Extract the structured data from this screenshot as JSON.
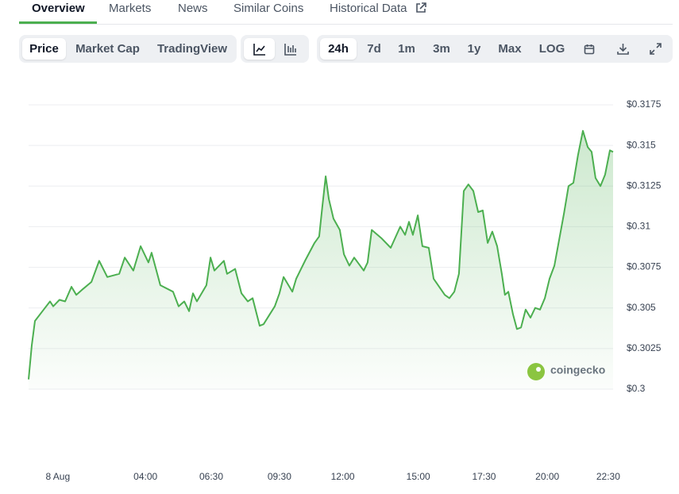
{
  "tabs": [
    "Overview",
    "Markets",
    "News",
    "Similar Coins",
    "Historical Data"
  ],
  "toolbar": {
    "views": [
      "Price",
      "Market Cap",
      "TradingView"
    ],
    "ranges": [
      "24h",
      "7d",
      "1m",
      "3m",
      "1y",
      "Max",
      "LOG"
    ]
  },
  "brand": "coingecko",
  "chart_data": {
    "type": "line",
    "color": "#4caf50",
    "grid": true,
    "x": [
      0,
      0.13,
      0.26,
      0.62,
      0.88,
      1.01,
      1.27,
      1.5,
      1.76,
      1.96,
      2.18,
      2.58,
      2.9,
      3.23,
      3.72,
      3.95,
      4.3,
      4.6,
      4.92,
      5.05,
      5.41,
      5.93,
      6.16,
      6.39,
      6.59,
      6.75,
      6.91,
      7.3,
      7.47,
      7.63,
      8.02,
      8.15,
      8.48,
      8.74,
      9.0,
      9.2,
      9.49,
      9.65,
      10.11,
      10.3,
      10.47,
      10.83,
      10.99,
      11.35,
      11.74,
      11.93,
      12.06,
      12.2,
      12.33,
      12.52,
      12.78,
      12.95,
      13.17,
      13.37,
      13.76,
      13.92,
      14.09,
      14.48,
      14.87,
      15.26,
      15.46,
      15.62,
      15.78,
      15.98,
      16.17,
      16.43,
      16.63,
      17.09,
      17.28,
      17.48,
      17.67,
      17.87,
      18.06,
      18.26,
      18.46,
      18.65,
      18.85,
      19.04,
      19.24,
      19.43,
      19.56,
      19.7,
      19.89,
      20.05,
      20.22,
      20.41,
      20.61,
      20.8,
      21.0,
      21.2,
      21.39,
      21.59,
      21.98,
      22.17,
      22.37,
      22.56,
      22.76,
      22.96,
      23.12,
      23.28,
      23.48,
      23.67,
      23.87,
      24.0
    ],
    "values": [
      0.3006,
      0.3027,
      0.3042,
      0.3049,
      0.3054,
      0.3051,
      0.3055,
      0.3054,
      0.3063,
      0.3058,
      0.3061,
      0.3066,
      0.3079,
      0.3069,
      0.3071,
      0.3081,
      0.3073,
      0.3088,
      0.3078,
      0.3084,
      0.3064,
      0.306,
      0.3051,
      0.3054,
      0.3048,
      0.3059,
      0.3054,
      0.3064,
      0.3081,
      0.3073,
      0.3079,
      0.3071,
      0.3074,
      0.3059,
      0.3054,
      0.3056,
      0.3039,
      0.304,
      0.3051,
      0.3059,
      0.3069,
      0.306,
      0.3068,
      0.3079,
      0.309,
      0.3094,
      0.3112,
      0.3131,
      0.3117,
      0.3105,
      0.3098,
      0.3083,
      0.3076,
      0.3081,
      0.3073,
      0.3078,
      0.3098,
      0.3093,
      0.3087,
      0.31,
      0.3095,
      0.3103,
      0.3095,
      0.3107,
      0.3088,
      0.3087,
      0.3068,
      0.3058,
      0.3056,
      0.306,
      0.3071,
      0.3122,
      0.3126,
      0.3122,
      0.3109,
      0.311,
      0.309,
      0.3097,
      0.3088,
      0.3071,
      0.3058,
      0.306,
      0.3046,
      0.3037,
      0.3038,
      0.3049,
      0.3044,
      0.305,
      0.3049,
      0.3056,
      0.3068,
      0.3076,
      0.3108,
      0.3125,
      0.3127,
      0.3144,
      0.3159,
      0.3149,
      0.3146,
      0.313,
      0.3125,
      0.3132,
      0.3147,
      0.3146
    ],
    "xlim": [
      0,
      24
    ],
    "xticks": [
      {
        "value": 1.2,
        "label": "8 Aug"
      },
      {
        "value": 4.8,
        "label": "04:00"
      },
      {
        "value": 7.5,
        "label": "06:30"
      },
      {
        "value": 10.3,
        "label": "09:30"
      },
      {
        "value": 12.9,
        "label": "12:00"
      },
      {
        "value": 16,
        "label": "15:00"
      },
      {
        "value": 18.7,
        "label": "17:30"
      },
      {
        "value": 21.3,
        "label": "20:00"
      },
      {
        "value": 23.8,
        "label": "22:30"
      }
    ],
    "ylim": [
      0.3,
      0.3175
    ],
    "yticks": [
      {
        "value": 0.3,
        "label": "$0.3"
      },
      {
        "value": 0.3025,
        "label": "$0.3025"
      },
      {
        "value": 0.305,
        "label": "$0.305"
      },
      {
        "value": 0.3075,
        "label": "$0.3075"
      },
      {
        "value": 0.31,
        "label": "$0.31"
      },
      {
        "value": 0.3125,
        "label": "$0.3125"
      },
      {
        "value": 0.315,
        "label": "$0.315"
      },
      {
        "value": 0.3175,
        "label": "$0.3175"
      }
    ]
  }
}
